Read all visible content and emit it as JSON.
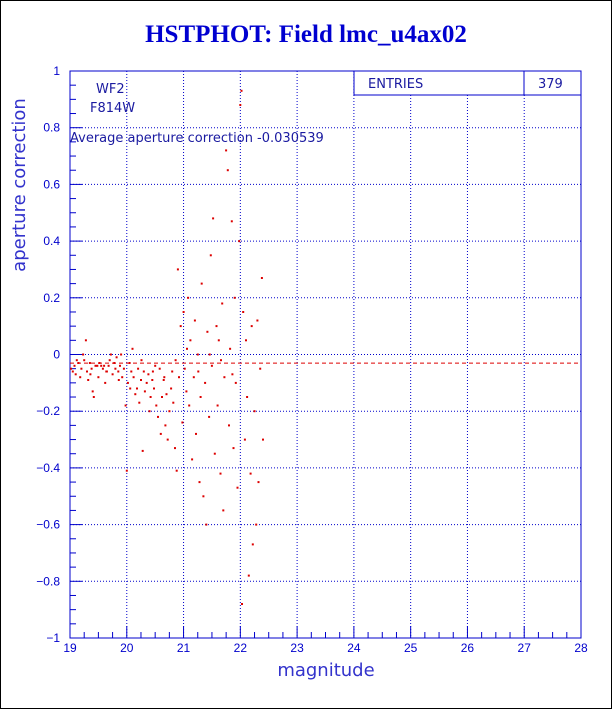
{
  "colors": {
    "axis": "#0000cc",
    "grid": "#0000cc",
    "points": "#dd0000",
    "average_line": "#dd0000",
    "title": "#0000d0"
  },
  "chart_data": {
    "type": "scatter",
    "title": "HSTPHOT: Field lmc_u4ax02",
    "xlabel": "magnitude",
    "ylabel": "aperture correction",
    "xlim": [
      19,
      28
    ],
    "ylim": [
      -1,
      1
    ],
    "x_ticks": [
      "19",
      "20",
      "21",
      "22",
      "23",
      "24",
      "25",
      "26",
      "27",
      "28"
    ],
    "y_ticks": [
      "-1",
      "-0.8",
      "-0.6",
      "-0.4",
      "-0.2",
      "0",
      "0.2",
      "0.4",
      "0.6",
      "0.8",
      "1"
    ],
    "grid": true,
    "legend": "none",
    "annotations": {
      "detector": "WF2",
      "filter": "F814W",
      "average_text": "Average aperture correction -0.030539"
    },
    "stats_box": {
      "label": "ENTRIES",
      "value": "379"
    },
    "average_line_y": -0.030539,
    "points": [
      [
        19.02,
        -0.05
      ],
      [
        19.05,
        -0.06
      ],
      [
        19.08,
        -0.04
      ],
      [
        19.1,
        -0.07
      ],
      [
        19.15,
        -0.03
      ],
      [
        19.18,
        -0.08
      ],
      [
        19.2,
        -0.05
      ],
      [
        19.23,
        0.0
      ],
      [
        19.25,
        -0.02
      ],
      [
        19.28,
        0.05
      ],
      [
        19.3,
        -0.06
      ],
      [
        19.32,
        -0.09
      ],
      [
        19.35,
        -0.03
      ],
      [
        19.38,
        -0.05
      ],
      [
        19.4,
        -0.13
      ],
      [
        19.42,
        -0.15
      ],
      [
        19.45,
        -0.04
      ],
      [
        19.48,
        -0.04
      ],
      [
        19.5,
        -0.08
      ],
      [
        19.52,
        -0.03
      ],
      [
        19.55,
        -0.04
      ],
      [
        19.58,
        -0.05
      ],
      [
        19.6,
        -0.04
      ],
      [
        19.62,
        -0.1
      ],
      [
        19.65,
        -0.06
      ],
      [
        19.68,
        -0.04
      ],
      [
        19.7,
        -0.02
      ],
      [
        19.72,
        0.0
      ],
      [
        19.75,
        -0.07
      ],
      [
        19.78,
        -0.03
      ],
      [
        19.8,
        -0.05
      ],
      [
        19.82,
        -0.01
      ],
      [
        19.85,
        -0.06
      ],
      [
        19.88,
        -0.04
      ],
      [
        19.9,
        0.0
      ],
      [
        19.92,
        -0.08
      ],
      [
        19.95,
        -0.05
      ],
      [
        19.98,
        -0.18
      ],
      [
        20.0,
        -0.41
      ],
      [
        20.02,
        -0.1
      ],
      [
        20.05,
        -0.03
      ],
      [
        20.08,
        -0.06
      ],
      [
        20.1,
        0.02
      ],
      [
        20.12,
        -0.08
      ],
      [
        20.15,
        -0.14
      ],
      [
        20.18,
        -0.12
      ],
      [
        20.2,
        -0.05
      ],
      [
        20.22,
        -0.17
      ],
      [
        20.25,
        -0.09
      ],
      [
        20.28,
        -0.34
      ],
      [
        20.3,
        -0.06
      ],
      [
        20.32,
        -0.13
      ],
      [
        20.35,
        -0.1
      ],
      [
        20.38,
        -0.07
      ],
      [
        20.4,
        -0.2
      ],
      [
        20.42,
        -0.15
      ],
      [
        20.45,
        -0.09
      ],
      [
        20.48,
        -0.12
      ],
      [
        20.5,
        -0.04
      ],
      [
        20.52,
        -0.18
      ],
      [
        20.55,
        -0.22
      ],
      [
        20.58,
        -0.05
      ],
      [
        20.6,
        -0.28
      ],
      [
        20.62,
        -0.15
      ],
      [
        20.65,
        -0.09
      ],
      [
        20.68,
        -0.25
      ],
      [
        20.7,
        -0.14
      ],
      [
        20.72,
        -0.3
      ],
      [
        20.75,
        -0.2
      ],
      [
        20.78,
        -0.12
      ],
      [
        20.8,
        -0.06
      ],
      [
        20.82,
        -0.17
      ],
      [
        20.85,
        -0.33
      ],
      [
        20.88,
        -0.41
      ],
      [
        20.9,
        0.3
      ],
      [
        20.92,
        -0.08
      ],
      [
        20.95,
        0.1
      ],
      [
        20.98,
        -0.24
      ],
      [
        21.0,
        0.15
      ],
      [
        21.02,
        -0.05
      ],
      [
        21.05,
        -0.13
      ],
      [
        21.08,
        0.2
      ],
      [
        21.1,
        -0.18
      ],
      [
        21.12,
        0.05
      ],
      [
        21.15,
        -0.37
      ],
      [
        21.18,
        -0.08
      ],
      [
        21.2,
        0.12
      ],
      [
        21.22,
        -0.28
      ],
      [
        21.25,
        0.0
      ],
      [
        21.28,
        -0.45
      ],
      [
        21.3,
        -0.15
      ],
      [
        21.32,
        0.25
      ],
      [
        21.35,
        -0.5
      ],
      [
        21.38,
        -0.1
      ],
      [
        21.4,
        -0.6
      ],
      [
        21.42,
        0.08
      ],
      [
        21.45,
        -0.22
      ],
      [
        21.48,
        0.35
      ],
      [
        21.5,
        -0.04
      ],
      [
        21.52,
        0.48
      ],
      [
        21.55,
        -0.35
      ],
      [
        21.58,
        0.1
      ],
      [
        21.6,
        -0.18
      ],
      [
        21.62,
        0.05
      ],
      [
        21.65,
        -0.42
      ],
      [
        21.68,
        0.18
      ],
      [
        21.7,
        -0.55
      ],
      [
        21.72,
        -0.08
      ],
      [
        21.75,
        0.72
      ],
      [
        21.78,
        0.65
      ],
      [
        21.8,
        -0.25
      ],
      [
        21.82,
        0.02
      ],
      [
        21.85,
        0.47
      ],
      [
        21.88,
        -0.33
      ],
      [
        21.9,
        0.2
      ],
      [
        21.92,
        -0.1
      ],
      [
        21.95,
        -0.47
      ],
      [
        21.98,
        0.4
      ],
      [
        22.0,
        0.88
      ],
      [
        22.02,
        0.93
      ],
      [
        22.03,
        -0.88
      ],
      [
        22.05,
        0.15
      ],
      [
        22.08,
        -0.3
      ],
      [
        22.1,
        0.05
      ],
      [
        22.12,
        -0.15
      ],
      [
        22.15,
        -0.78
      ],
      [
        22.18,
        -0.42
      ],
      [
        22.2,
        0.1
      ],
      [
        22.22,
        -0.67
      ],
      [
        22.25,
        -0.2
      ],
      [
        22.28,
        -0.6
      ],
      [
        22.3,
        0.12
      ],
      [
        22.32,
        -0.45
      ],
      [
        22.35,
        -0.05
      ],
      [
        22.38,
        0.27
      ],
      [
        22.4,
        -0.3
      ],
      [
        19.12,
        -0.02
      ],
      [
        19.36,
        -0.07
      ],
      [
        19.64,
        -0.06
      ],
      [
        19.86,
        -0.09
      ],
      [
        20.06,
        -0.12
      ],
      [
        20.26,
        -0.02
      ],
      [
        20.46,
        -0.06
      ],
      [
        20.66,
        -0.08
      ],
      [
        20.86,
        -0.02
      ],
      [
        21.06,
        0.02
      ],
      [
        21.26,
        -0.06
      ],
      [
        21.46,
        0.0
      ],
      [
        21.66,
        -0.02
      ],
      [
        21.86,
        -0.07
      ]
    ]
  }
}
